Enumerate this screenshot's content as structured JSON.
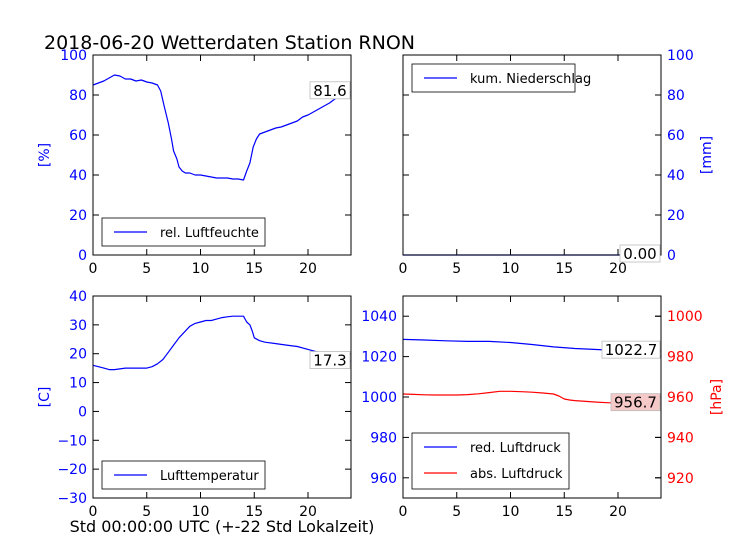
{
  "title": "2018-06-20 Wetterdaten Station RNON",
  "footer_label": "Std 00:00:00 UTC (+-22 Std Lokalzeit)",
  "colors": {
    "blue": "#0000ff",
    "red": "#ff0000",
    "axis": "#000000"
  },
  "chart_data": [
    {
      "type": "line",
      "panel": "top-left",
      "xlim": [
        0,
        24
      ],
      "xticks": [
        0,
        5,
        10,
        15,
        20
      ],
      "ylim": [
        0,
        100
      ],
      "yticks": [
        0,
        20,
        40,
        60,
        80,
        100
      ],
      "ylabel": "[%]",
      "ylabel_side": "left",
      "legend_position": "lower-left",
      "series": [
        {
          "name": "rel. Luftfeuchte",
          "color": "#0000ff",
          "x": [
            0,
            0.5,
            1,
            1.5,
            2,
            2.5,
            3,
            3.5,
            4,
            4.5,
            5,
            5.5,
            6,
            6.3,
            6.6,
            7,
            7.3,
            7.5,
            7.8,
            8,
            8.3,
            8.6,
            9,
            9.5,
            10,
            10.5,
            11,
            11.5,
            12,
            12.5,
            13,
            13.5,
            14,
            14.3,
            14.6,
            14.9,
            15.2,
            15.5,
            16,
            16.5,
            17,
            17.5,
            18,
            18.5,
            19,
            19.5,
            20,
            20.5,
            21,
            21.5,
            22,
            22.5,
            23,
            23.5,
            24
          ],
          "y": [
            85,
            86,
            87,
            88.5,
            90,
            89.5,
            88,
            88,
            87,
            87.5,
            86.5,
            86,
            85,
            82,
            75,
            66,
            58,
            52,
            48,
            44,
            42,
            41,
            41,
            40,
            40,
            39.5,
            39,
            38.5,
            38.5,
            38.5,
            38,
            38,
            37.5,
            42,
            46,
            54,
            58,
            60.5,
            61.5,
            62.5,
            63.5,
            64,
            65,
            66,
            67,
            69,
            70,
            71.5,
            73,
            74.5,
            76,
            78,
            79.5,
            80.5,
            81.6
          ]
        }
      ],
      "annotation": {
        "text": "81.6",
        "x": 24,
        "y": 81.6
      }
    },
    {
      "type": "line",
      "panel": "top-right",
      "xlim": [
        0,
        24
      ],
      "xticks": [
        0,
        5,
        10,
        15,
        20
      ],
      "ylim": [
        0,
        100
      ],
      "yticks": [
        0,
        20,
        40,
        60,
        80,
        100
      ],
      "ylabel": "[mm]",
      "ylabel_side": "right",
      "legend_position": "upper-left",
      "series": [
        {
          "name": "kum. Niederschlag",
          "color": "#0000ff",
          "x": [
            0,
            24
          ],
          "y": [
            0,
            0
          ]
        }
      ],
      "annotation": {
        "text": "0.00",
        "x": 24,
        "y": 0
      }
    },
    {
      "type": "line",
      "panel": "bottom-left",
      "xlim": [
        0,
        24
      ],
      "xticks": [
        0,
        5,
        10,
        15,
        20
      ],
      "ylim": [
        -30,
        40
      ],
      "yticks": [
        -30,
        -20,
        -10,
        0,
        10,
        20,
        30,
        40
      ],
      "ylabel": "[C]",
      "ylabel_side": "left",
      "legend_position": "lower-left",
      "series": [
        {
          "name": "Lufttemperatur",
          "color": "#0000ff",
          "x": [
            0,
            0.5,
            1,
            1.5,
            2,
            3,
            4,
            5,
            5.5,
            6,
            6.5,
            7,
            7.5,
            8,
            8.5,
            9,
            9.5,
            10,
            10.5,
            11,
            11.5,
            12,
            12.5,
            13,
            13.5,
            14,
            14.3,
            14.6,
            14.8,
            15,
            15.5,
            16,
            17,
            18,
            19,
            20,
            21,
            22,
            23,
            24
          ],
          "y": [
            16,
            15.5,
            15,
            14.5,
            14.5,
            15,
            15,
            15,
            15.5,
            16.5,
            18,
            20.5,
            23,
            25.5,
            27.5,
            29.5,
            30.5,
            31,
            31.5,
            31.5,
            32,
            32.5,
            32.8,
            33,
            33,
            33,
            31,
            30,
            28,
            25.5,
            24.5,
            24,
            23.5,
            23,
            22.5,
            21.5,
            20.5,
            19.5,
            18.5,
            17.3
          ]
        }
      ],
      "annotation": {
        "text": "17.3",
        "x": 24,
        "y": 17.3
      }
    },
    {
      "type": "line",
      "panel": "bottom-right",
      "xlim": [
        0,
        24
      ],
      "xticks": [
        0,
        5,
        10,
        15,
        20
      ],
      "ylim": [
        950,
        1050
      ],
      "yticks": [
        960,
        980,
        1000,
        1020,
        1040
      ],
      "ylim_right": [
        910,
        1010
      ],
      "yticks_right": [
        920,
        940,
        960,
        980,
        1000
      ],
      "ylabel": "",
      "ylabel_right": "[hPa]",
      "legend_position": "lower-left",
      "series": [
        {
          "name": "red. Luftdruck",
          "color": "#0000ff",
          "axis": "left",
          "x": [
            0,
            2,
            4,
            6,
            8,
            10,
            12,
            14,
            16,
            18,
            20,
            22,
            24
          ],
          "y": [
            1028.5,
            1028.2,
            1027.8,
            1027.5,
            1027.5,
            1027,
            1026,
            1024.8,
            1024,
            1023.5,
            1023,
            1022.8,
            1022.7
          ]
        },
        {
          "name": "abs. Luftdruck",
          "color": "#ff0000",
          "axis": "right",
          "x": [
            0,
            1,
            2,
            3,
            4,
            5,
            6,
            7,
            8,
            9,
            10,
            11,
            12,
            13,
            14,
            14.5,
            15,
            15.5,
            16,
            17,
            18,
            19,
            20,
            21,
            22,
            23,
            24
          ],
          "y": [
            961.5,
            961.3,
            961.1,
            961,
            961,
            961,
            961.2,
            961.6,
            962.2,
            962.8,
            962.8,
            962.6,
            962.4,
            962,
            961.5,
            960.5,
            959,
            958.5,
            958.2,
            957.8,
            957.5,
            957.2,
            957,
            956.9,
            956.8,
            956.7,
            956.7
          ]
        }
      ],
      "annotations": [
        {
          "text": "1022.7",
          "x": 24,
          "y": 1022.7,
          "axis": "left"
        },
        {
          "text": "956.7",
          "x": 24,
          "y": 956.7,
          "axis": "right"
        }
      ]
    }
  ]
}
